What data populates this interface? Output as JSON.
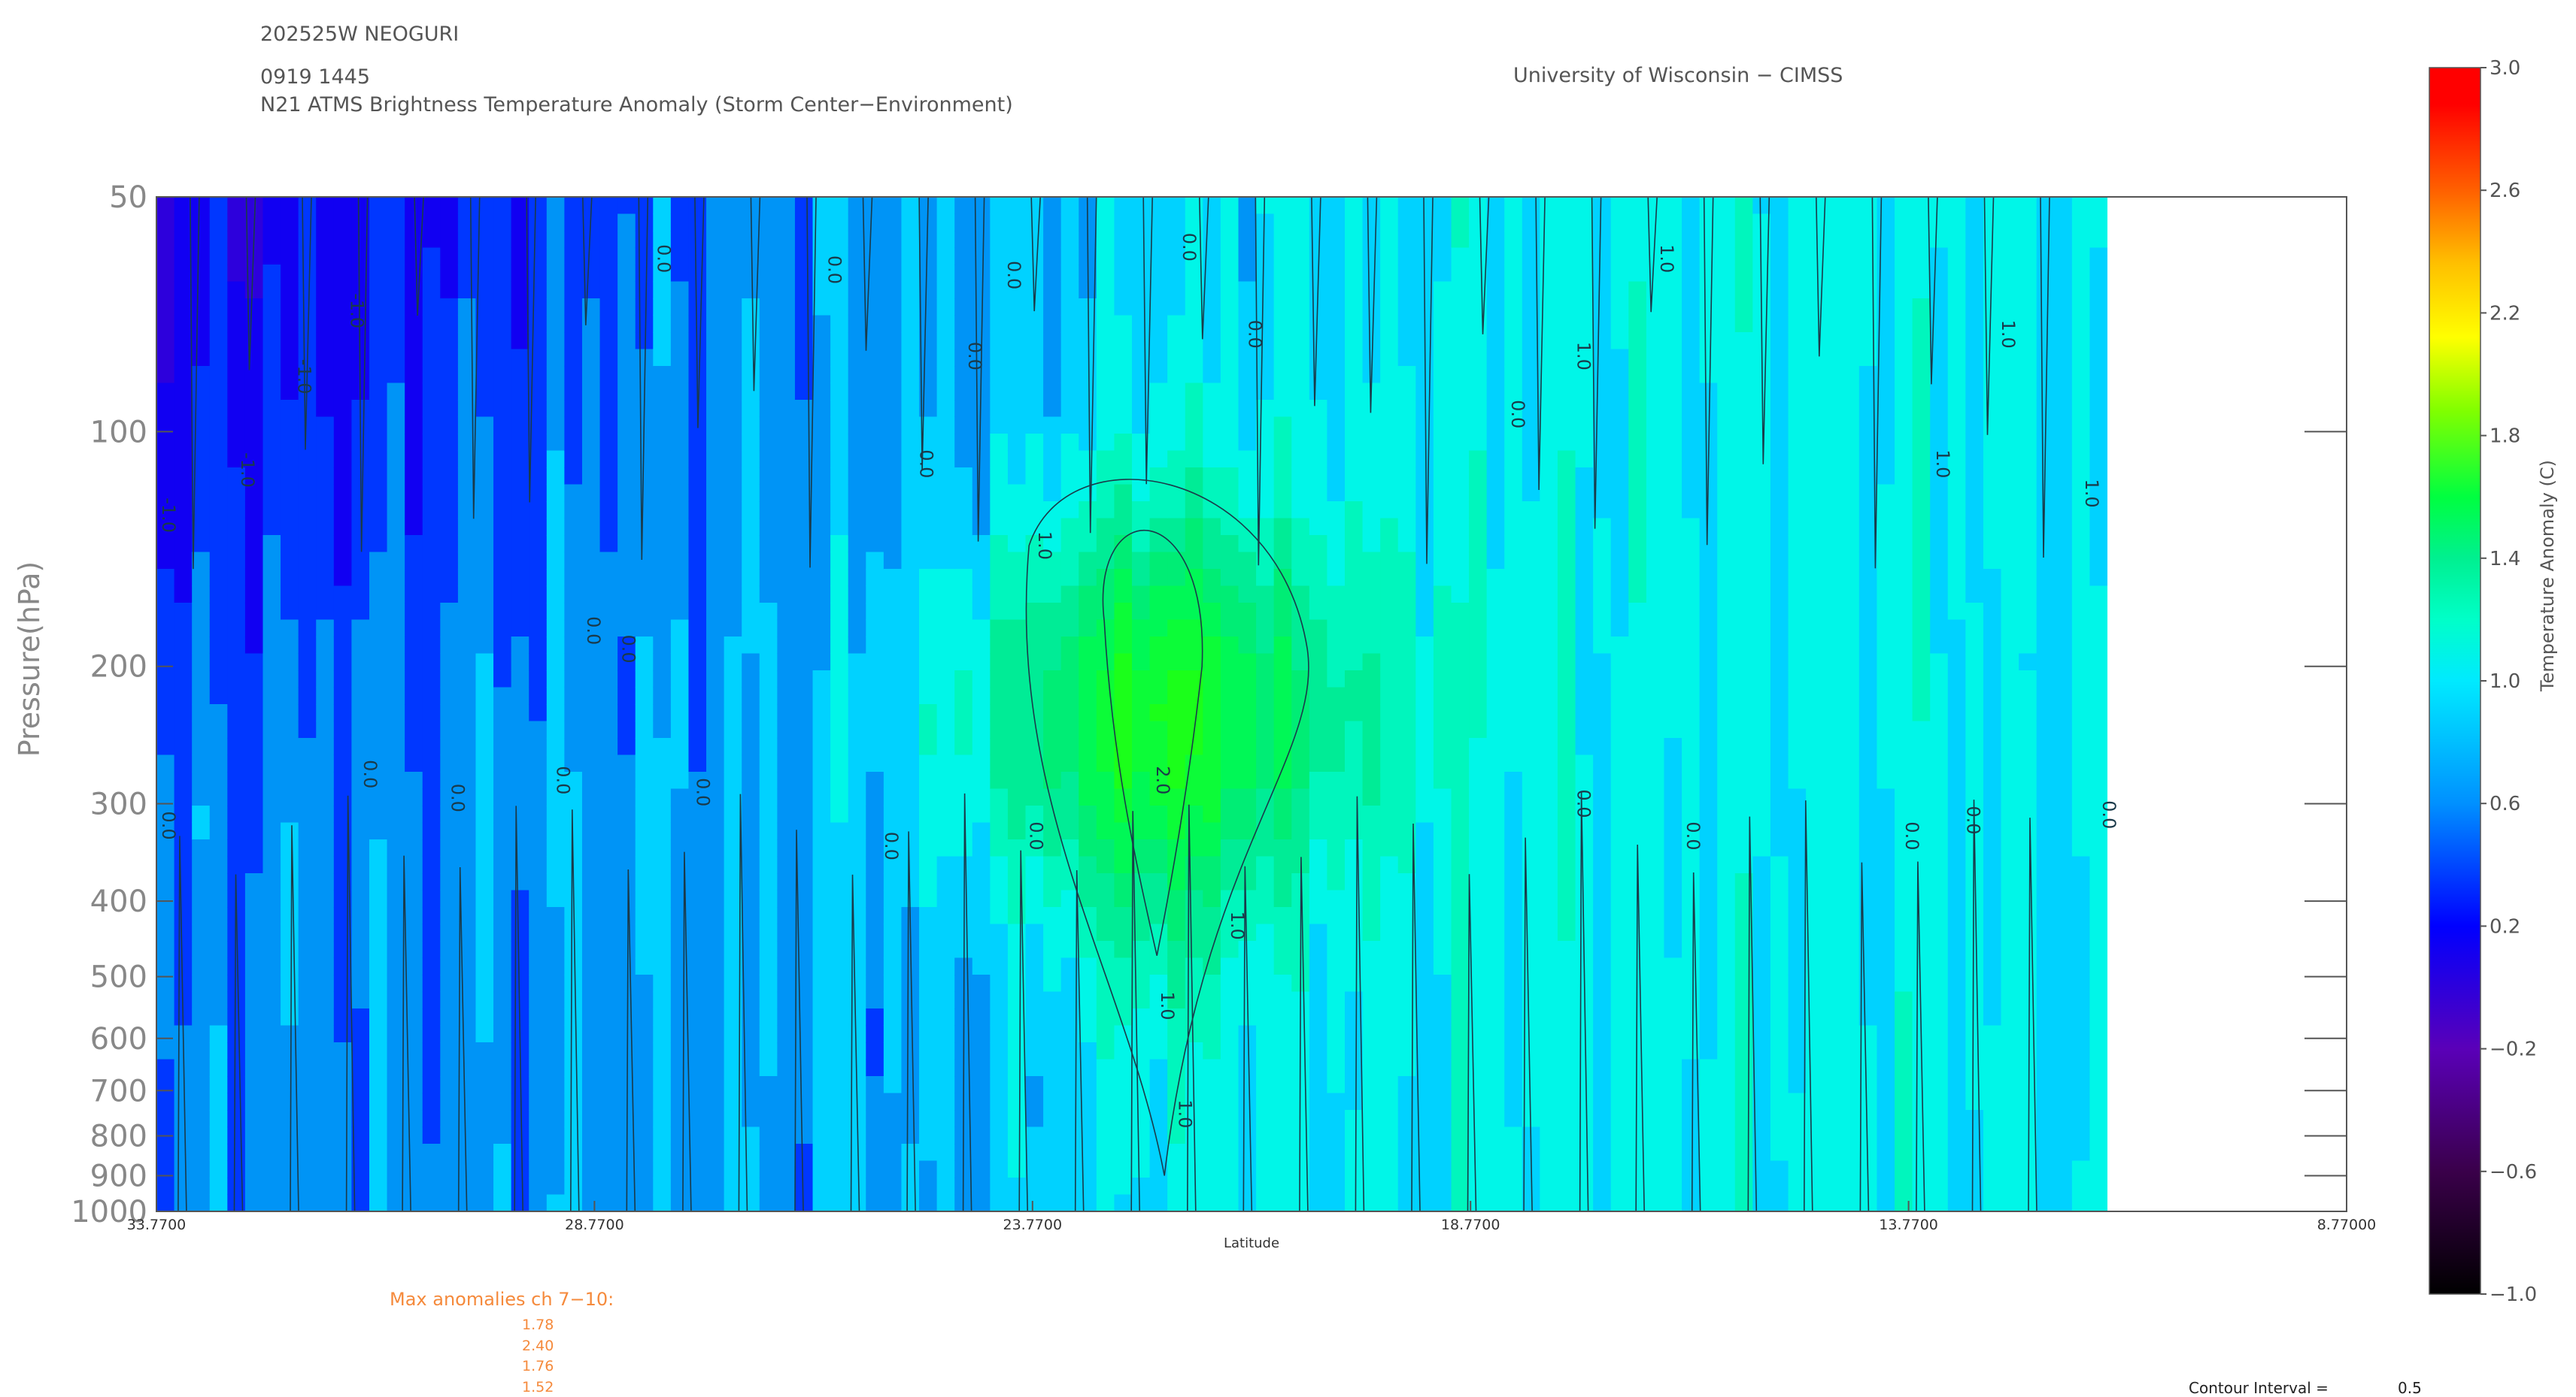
{
  "header": {
    "storm_id": "202525W NEOGURI",
    "datetime": "0919 1445",
    "product": "N21 ATMS Brightness Temperature Anomaly (Storm Center−Environment)",
    "institution": "University of Wisconsin − CIMSS"
  },
  "chart_data": {
    "type": "heatmap",
    "xlabel": "Latitude",
    "ylabel": "Pressure(hPa)",
    "x_ticks": [
      "33.7700",
      "28.7700",
      "23.7700",
      "18.7700",
      "13.7700",
      "8.77000"
    ],
    "xlim": [
      33.77,
      8.77
    ],
    "data_x_extent": [
      33.77,
      11.5
    ],
    "y_ticks": [
      "50",
      "100",
      "200",
      "300",
      "400",
      "500",
      "600",
      "700",
      "800",
      "900",
      "1000"
    ],
    "ylim": [
      50,
      1000
    ],
    "y_scale": "log",
    "colorbar": {
      "label": "Temperature Anomaly (C)",
      "ticks": [
        "3.0",
        "2.6",
        "2.2",
        "1.8",
        "1.4",
        "1.0",
        "0.6",
        "0.2",
        "−0.2",
        "−0.6",
        "−1.0"
      ],
      "range": [
        -1.0,
        3.0
      ]
    },
    "contour_labels": [
      {
        "text": "-1.0",
        "lat": 33.7,
        "p": 128
      },
      {
        "text": "-1.0",
        "lat": 32.8,
        "p": 112
      },
      {
        "text": "-1.0",
        "lat": 32.15,
        "p": 85
      },
      {
        "text": "-1.0",
        "lat": 31.55,
        "p": 70
      },
      {
        "text": "0.0",
        "lat": 33.7,
        "p": 320
      },
      {
        "text": "0.0",
        "lat": 31.4,
        "p": 275
      },
      {
        "text": "0.0",
        "lat": 30.4,
        "p": 295
      },
      {
        "text": "0.0",
        "lat": 28.85,
        "p": 180
      },
      {
        "text": "0.0",
        "lat": 29.2,
        "p": 280
      },
      {
        "text": "0.0",
        "lat": 28.45,
        "p": 190
      },
      {
        "text": "0.0",
        "lat": 28.05,
        "p": 60
      },
      {
        "text": "0.0",
        "lat": 27.6,
        "p": 290
      },
      {
        "text": "0.0",
        "lat": 26.1,
        "p": 62
      },
      {
        "text": "0.0",
        "lat": 25.45,
        "p": 340
      },
      {
        "text": "0.0",
        "lat": 25.05,
        "p": 110
      },
      {
        "text": "0.0",
        "lat": 24.5,
        "p": 80
      },
      {
        "text": "0.0",
        "lat": 24.05,
        "p": 63
      },
      {
        "text": "0.0",
        "lat": 23.8,
        "p": 330
      },
      {
        "text": "0.0",
        "lat": 22.05,
        "p": 58
      },
      {
        "text": "0.0",
        "lat": 21.3,
        "p": 75
      },
      {
        "text": "0.0",
        "lat": 18.3,
        "p": 95
      },
      {
        "text": "0.0",
        "lat": 17.55,
        "p": 300
      },
      {
        "text": "0.0",
        "lat": 16.3,
        "p": 330
      },
      {
        "text": "0.0",
        "lat": 13.8,
        "p": 330
      },
      {
        "text": "0.0",
        "lat": 13.1,
        "p": 315
      },
      {
        "text": "0.0",
        "lat": 11.55,
        "p": 310
      },
      {
        "text": "1.0",
        "lat": 23.7,
        "p": 140
      },
      {
        "text": "1.0",
        "lat": 22.3,
        "p": 545
      },
      {
        "text": "1.0",
        "lat": 21.5,
        "p": 430
      },
      {
        "text": "1.0",
        "lat": 22.1,
        "p": 750
      },
      {
        "text": "1.0",
        "lat": 17.55,
        "p": 80
      },
      {
        "text": "1.0",
        "lat": 16.6,
        "p": 60
      },
      {
        "text": "1.0",
        "lat": 12.7,
        "p": 75
      },
      {
        "text": "1.0",
        "lat": 11.75,
        "p": 120
      },
      {
        "text": "1.0",
        "lat": 13.45,
        "p": 110
      },
      {
        "text": "2.0",
        "lat": 22.35,
        "p": 280
      }
    ],
    "max_anomalies": {
      "label": "Max anomalies ch 7−10:",
      "values": [
        "1.78",
        "2.40",
        "1.76",
        "1.52"
      ]
    },
    "contour_interval": {
      "label": "Contour Interval =",
      "value": "0.5"
    }
  }
}
